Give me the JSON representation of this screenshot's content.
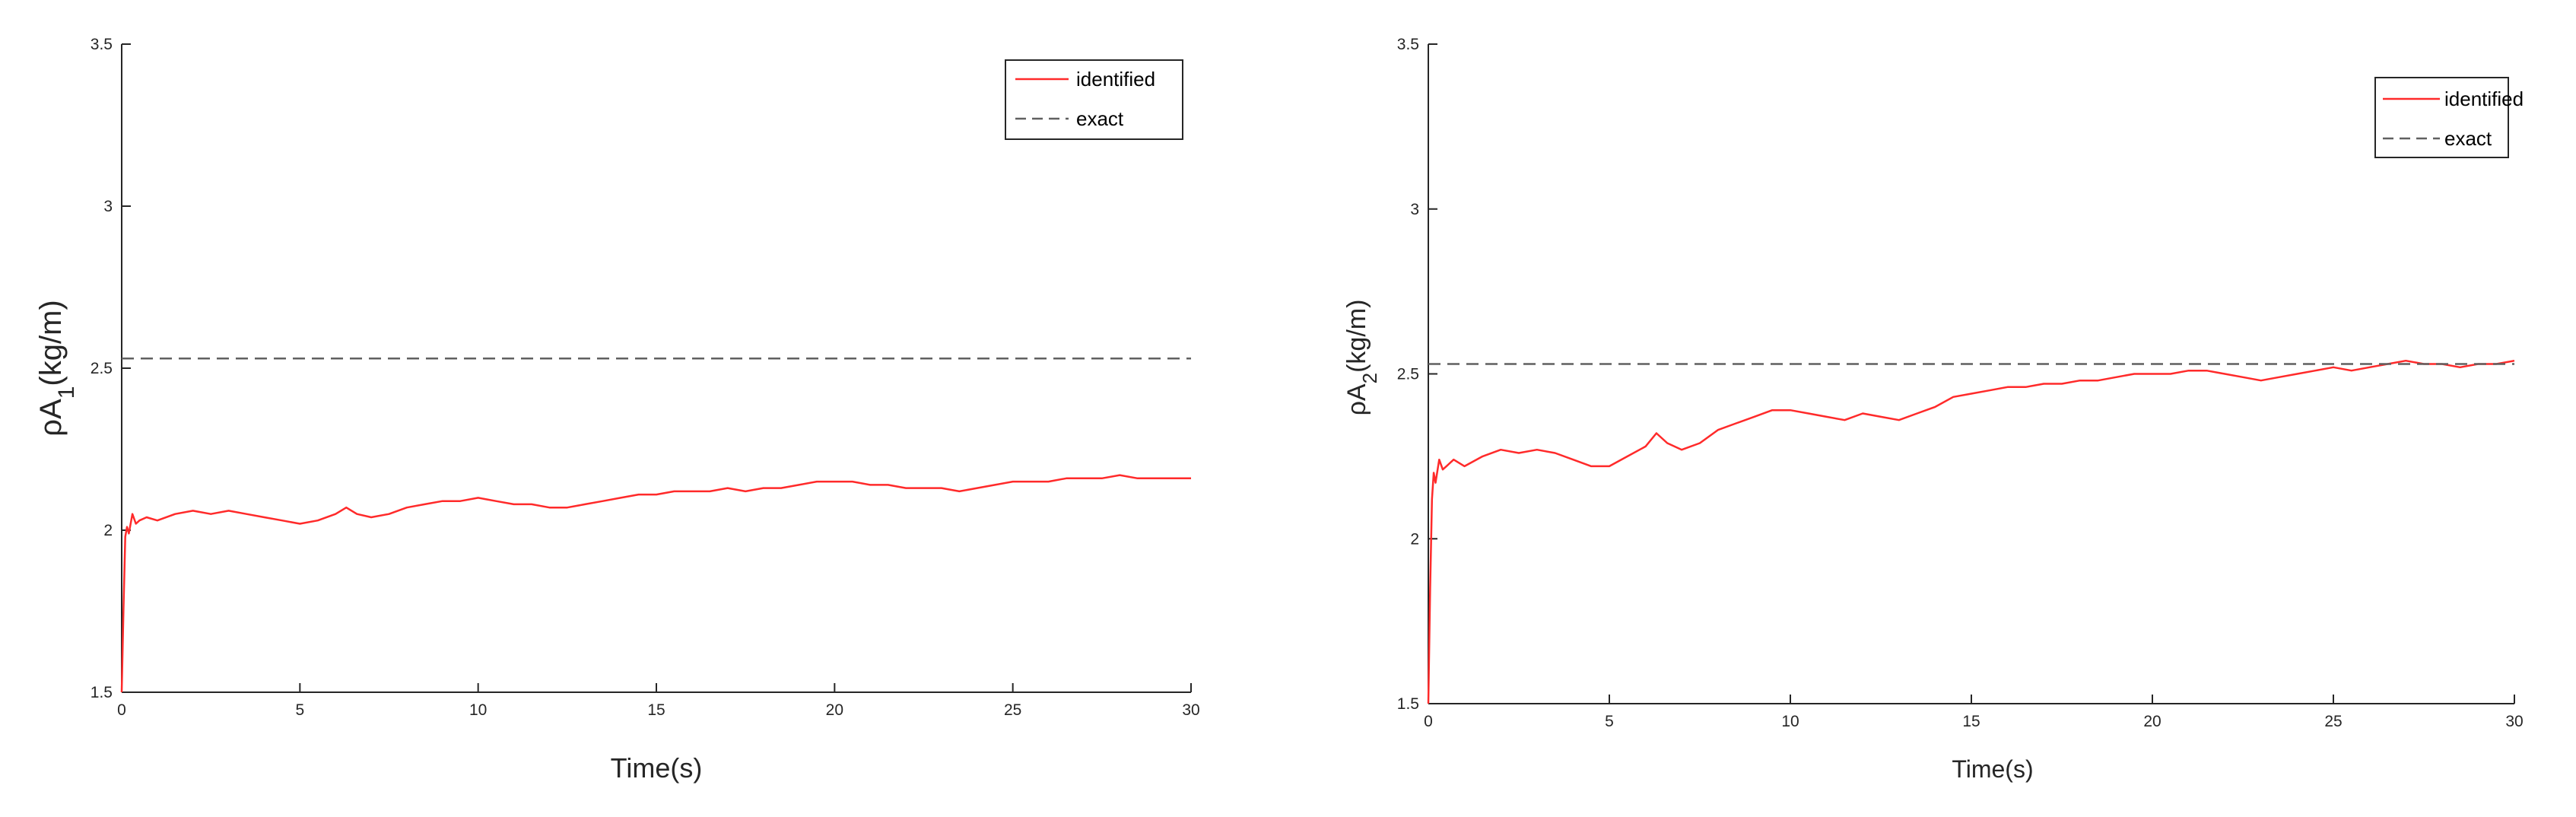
{
  "chart_data": [
    {
      "type": "line",
      "xlabel": "Time(s)",
      "ylabel": {
        "prefix": "ρA",
        "subscript": "1",
        "suffix": "(kg/m)"
      },
      "xlim": [
        0,
        30
      ],
      "ylim": [
        1.5,
        3.5
      ],
      "xticks": [
        "0",
        "5",
        "10",
        "15",
        "20",
        "25",
        "30"
      ],
      "yticks": [
        "1.5",
        "2",
        "2.5",
        "3",
        "3.5"
      ],
      "grid": false,
      "legend_position": "top-right",
      "series": [
        {
          "name": "identified",
          "color": "#ff2a2a",
          "style": "solid",
          "x": [
            0,
            0.05,
            0.1,
            0.15,
            0.2,
            0.3,
            0.4,
            0.5,
            0.7,
            1,
            1.5,
            2,
            2.5,
            3,
            3.5,
            4,
            4.5,
            5,
            5.5,
            6,
            6.3,
            6.6,
            7,
            7.5,
            8,
            8.5,
            9,
            9.5,
            10,
            10.5,
            11,
            11.5,
            12,
            12.5,
            13,
            13.5,
            14,
            14.5,
            15,
            15.5,
            16,
            16.5,
            17,
            17.5,
            18,
            18.5,
            19,
            19.5,
            20,
            20.5,
            21,
            21.5,
            22,
            22.5,
            23,
            23.5,
            24,
            24.5,
            25,
            25.5,
            26,
            26.5,
            27,
            27.5,
            28,
            28.5,
            29,
            29.5,
            30
          ],
          "y": [
            1.5,
            1.75,
            1.98,
            2.01,
            1.99,
            2.05,
            2.02,
            2.03,
            2.04,
            2.03,
            2.05,
            2.06,
            2.05,
            2.06,
            2.05,
            2.04,
            2.03,
            2.02,
            2.03,
            2.05,
            2.07,
            2.05,
            2.04,
            2.05,
            2.07,
            2.08,
            2.09,
            2.09,
            2.1,
            2.09,
            2.08,
            2.08,
            2.07,
            2.07,
            2.08,
            2.09,
            2.1,
            2.11,
            2.11,
            2.12,
            2.12,
            2.12,
            2.13,
            2.12,
            2.13,
            2.13,
            2.14,
            2.15,
            2.15,
            2.15,
            2.14,
            2.14,
            2.13,
            2.13,
            2.13,
            2.12,
            2.13,
            2.14,
            2.15,
            2.15,
            2.15,
            2.16,
            2.16,
            2.16,
            2.17,
            2.16,
            2.16,
            2.16,
            2.16
          ]
        },
        {
          "name": "exact",
          "color": "#606060",
          "style": "dashed",
          "x": [
            0,
            30
          ],
          "y": [
            2.53,
            2.53
          ]
        }
      ]
    },
    {
      "type": "line",
      "xlabel": "Time(s)",
      "ylabel": {
        "prefix": "ρA",
        "subscript": "2",
        "suffix": "(kg/m)"
      },
      "xlim": [
        0,
        30
      ],
      "ylim": [
        1.5,
        3.5
      ],
      "xticks": [
        "0",
        "5",
        "10",
        "15",
        "20",
        "25",
        "30"
      ],
      "yticks": [
        "1.5",
        "2",
        "2.5",
        "3",
        "3.5"
      ],
      "grid": false,
      "legend_position": "top-right",
      "series": [
        {
          "name": "identified",
          "color": "#ff2a2a",
          "style": "solid",
          "x": [
            0,
            0.05,
            0.1,
            0.15,
            0.2,
            0.3,
            0.4,
            0.5,
            0.7,
            1,
            1.5,
            2,
            2.5,
            3,
            3.5,
            4,
            4.5,
            5,
            5.5,
            6,
            6.3,
            6.6,
            7,
            7.5,
            8,
            8.5,
            9,
            9.5,
            10,
            10.5,
            11,
            11.5,
            12,
            12.5,
            13,
            13.5,
            14,
            14.5,
            15,
            15.5,
            16,
            16.5,
            17,
            17.5,
            18,
            18.5,
            19,
            19.5,
            20,
            20.5,
            21,
            21.5,
            22,
            22.5,
            23,
            23.5,
            24,
            24.5,
            25,
            25.5,
            26,
            26.5,
            27,
            27.5,
            28,
            28.5,
            29,
            29.5,
            30
          ],
          "y": [
            1.5,
            1.85,
            2.12,
            2.2,
            2.17,
            2.24,
            2.21,
            2.22,
            2.24,
            2.22,
            2.25,
            2.27,
            2.26,
            2.27,
            2.26,
            2.24,
            2.22,
            2.22,
            2.25,
            2.28,
            2.32,
            2.29,
            2.27,
            2.29,
            2.33,
            2.35,
            2.37,
            2.39,
            2.39,
            2.38,
            2.37,
            2.36,
            2.38,
            2.37,
            2.36,
            2.38,
            2.4,
            2.43,
            2.44,
            2.45,
            2.46,
            2.46,
            2.47,
            2.47,
            2.48,
            2.48,
            2.49,
            2.5,
            2.5,
            2.5,
            2.51,
            2.51,
            2.5,
            2.49,
            2.48,
            2.49,
            2.5,
            2.51,
            2.52,
            2.51,
            2.52,
            2.53,
            2.54,
            2.53,
            2.53,
            2.52,
            2.53,
            2.53,
            2.54
          ]
        },
        {
          "name": "exact",
          "color": "#606060",
          "style": "dashed",
          "x": [
            0,
            30
          ],
          "y": [
            2.53,
            2.53
          ]
        }
      ]
    }
  ]
}
